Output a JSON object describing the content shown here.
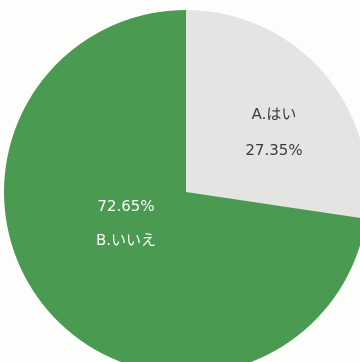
{
  "chart_data": {
    "type": "pie",
    "title": "",
    "slices": [
      {
        "label": "A.はい",
        "value": 27.35,
        "value_label": "27.35%",
        "color": "#e4e4e2",
        "text_color": "#3a3a3a"
      },
      {
        "label": "B.いいえ",
        "value": 72.65,
        "value_label": "72.65%",
        "color": "#4a9a52",
        "text_color": "#ffffff"
      }
    ],
    "start_angle": "12 o'clock",
    "direction": "clockwise",
    "legend": "none"
  }
}
